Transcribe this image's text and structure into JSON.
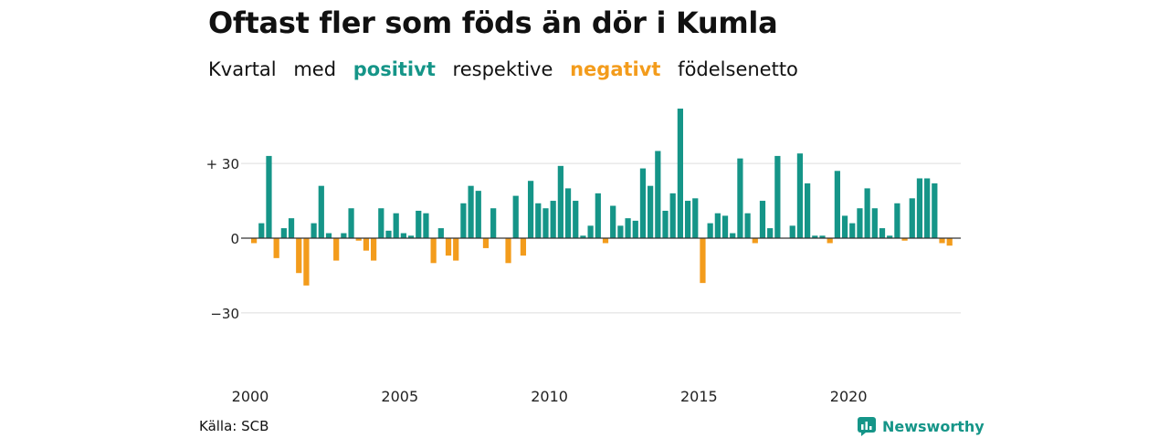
{
  "title": "Oftast fler som föds än dör i Kumla",
  "subtitle": {
    "part1": "Kvartal",
    "part2": "med",
    "positive": "positivt",
    "part3": "respektive",
    "negative": "negativt",
    "part4": "födelsenetto"
  },
  "source": "Källa: SCB",
  "brand": "Newsworthy",
  "colors": {
    "positive": "#159588",
    "negative": "#f39c1c",
    "grid": "#dddddd",
    "axis": "#333333"
  },
  "chart_data": {
    "type": "bar",
    "x_start": 2000,
    "x_unit": "quarter",
    "xtick_labels": [
      "2000",
      "2005",
      "2010",
      "2015",
      "2020"
    ],
    "ytick_labels": [
      "+ 30",
      "0",
      "−30"
    ],
    "yticks": [
      30,
      0,
      -30
    ],
    "ylim": [
      -45,
      52
    ],
    "values": [
      -2,
      6,
      33,
      -8,
      4,
      8,
      -14,
      -19,
      6,
      21,
      2,
      -9,
      2,
      12,
      -1,
      -5,
      -9,
      12,
      3,
      10,
      2,
      1,
      11,
      10,
      -10,
      4,
      -7,
      -9,
      14,
      21,
      19,
      -4,
      12,
      0,
      -10,
      17,
      -7,
      23,
      14,
      12,
      15,
      29,
      20,
      15,
      1,
      5,
      18,
      -2,
      13,
      5,
      8,
      7,
      28,
      21,
      35,
      11,
      18,
      52,
      15,
      16,
      -18,
      6,
      10,
      9,
      2,
      32,
      10,
      -2,
      15,
      4,
      33,
      0,
      5,
      34,
      22,
      1,
      1,
      -2,
      27,
      9,
      6,
      12,
      20,
      12,
      4,
      1,
      14,
      -1,
      16,
      24,
      24,
      22,
      -2,
      -3
    ]
  }
}
